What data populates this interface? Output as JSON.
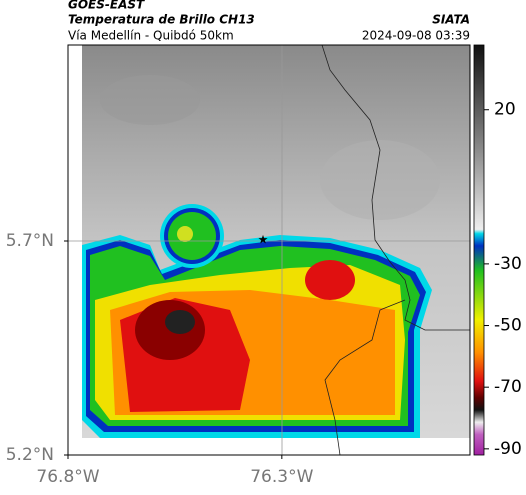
{
  "header": {
    "satellite": "GOES-EAST",
    "product": "Temperatura de Brillo CH13",
    "region": "Vía Medellín - Quibdó 50km",
    "source": "SIATA",
    "datetime": "2024-09-08 03:39"
  },
  "map": {
    "xlim": [
      -76.8,
      -75.86
    ],
    "ylim": [
      5.2,
      6.158
    ],
    "xticks": [
      {
        "value": -76.8,
        "label": "76.8°W"
      },
      {
        "value": -76.3,
        "label": "76.3°W"
      }
    ],
    "yticks": [
      {
        "value": 5.2,
        "label": "5.2°N"
      },
      {
        "value": 5.7,
        "label": "5.7°N"
      }
    ]
  },
  "colorbar": {
    "lim": [
      -92,
      41
    ],
    "ticks": [
      20,
      -30,
      -50,
      -70,
      -90
    ]
  }
}
